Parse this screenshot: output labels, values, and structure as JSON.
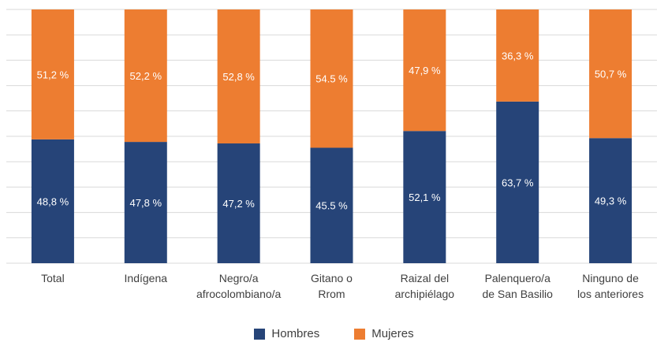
{
  "chart_data": {
    "type": "bar",
    "stacked": true,
    "percent_stacked": true,
    "categories": [
      [
        "Total"
      ],
      [
        "Indígena"
      ],
      [
        "Negro/a",
        "afrocolombiano/a"
      ],
      [
        "Gitano o",
        "Rrom"
      ],
      [
        "Raizal del",
        "archipiélago"
      ],
      [
        "Palenquero/a",
        "de San Basilio"
      ],
      [
        "Ninguno de",
        "los anteriores"
      ]
    ],
    "series": [
      {
        "name": "Hombres",
        "color": "#264478",
        "values": [
          48.8,
          47.8,
          47.2,
          45.5,
          52.1,
          63.7,
          49.3
        ],
        "labels": [
          "48,8 %",
          "47,8 %",
          "47,2 %",
          "45.5 %",
          "52,1 %",
          "63,7 %",
          "49,3 %"
        ]
      },
      {
        "name": "Mujeres",
        "color": "#ED7D31",
        "values": [
          51.2,
          52.2,
          52.8,
          54.5,
          47.9,
          36.3,
          50.7
        ],
        "labels": [
          "51,2 %",
          "52,2 %",
          "52,8 %",
          "54.5 %",
          "47,9 %",
          "36,3 %",
          "50,7 %"
        ]
      }
    ],
    "ylim": [
      0,
      100
    ],
    "grid": true,
    "legend_position": "bottom"
  }
}
